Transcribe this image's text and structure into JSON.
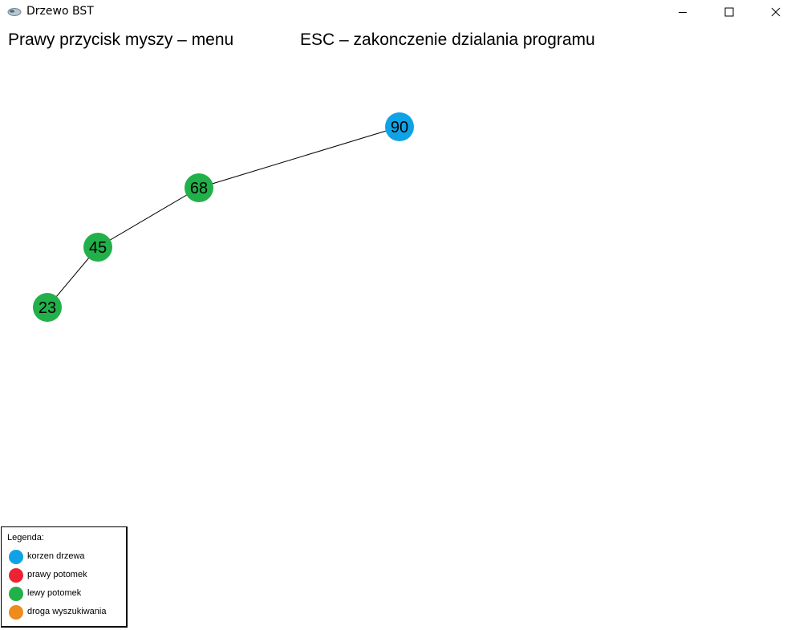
{
  "window": {
    "title": "Drzewo BST",
    "icon": "app-icon",
    "buttons": {
      "minimize": "minimize-icon",
      "maximize": "maximize-icon",
      "close": "close-icon"
    }
  },
  "hints": {
    "menu": "Prawy przycisk myszy – menu",
    "esc": "ESC – zakonczenie dzialania programu"
  },
  "colors": {
    "root": "#0fa3e6",
    "right_child": "#ec2332",
    "left_child": "#22b04a",
    "search_path": "#ef8a1c",
    "edge": "#000000"
  },
  "tree": {
    "root": "90",
    "nodes": [
      {
        "value": "90",
        "role": "root",
        "parent": null
      },
      {
        "value": "68",
        "role": "left_child",
        "parent": "90"
      },
      {
        "value": "45",
        "role": "left_child",
        "parent": "68"
      },
      {
        "value": "23",
        "role": "left_child",
        "parent": "45"
      }
    ]
  },
  "legend": {
    "title": "Legenda:",
    "items": [
      {
        "label": "korzen drzewa",
        "role": "root"
      },
      {
        "label": "prawy potomek",
        "role": "right_child"
      },
      {
        "label": "lewy potomek",
        "role": "left_child"
      },
      {
        "label": "droga wyszukiwania",
        "role": "search_path"
      }
    ]
  }
}
